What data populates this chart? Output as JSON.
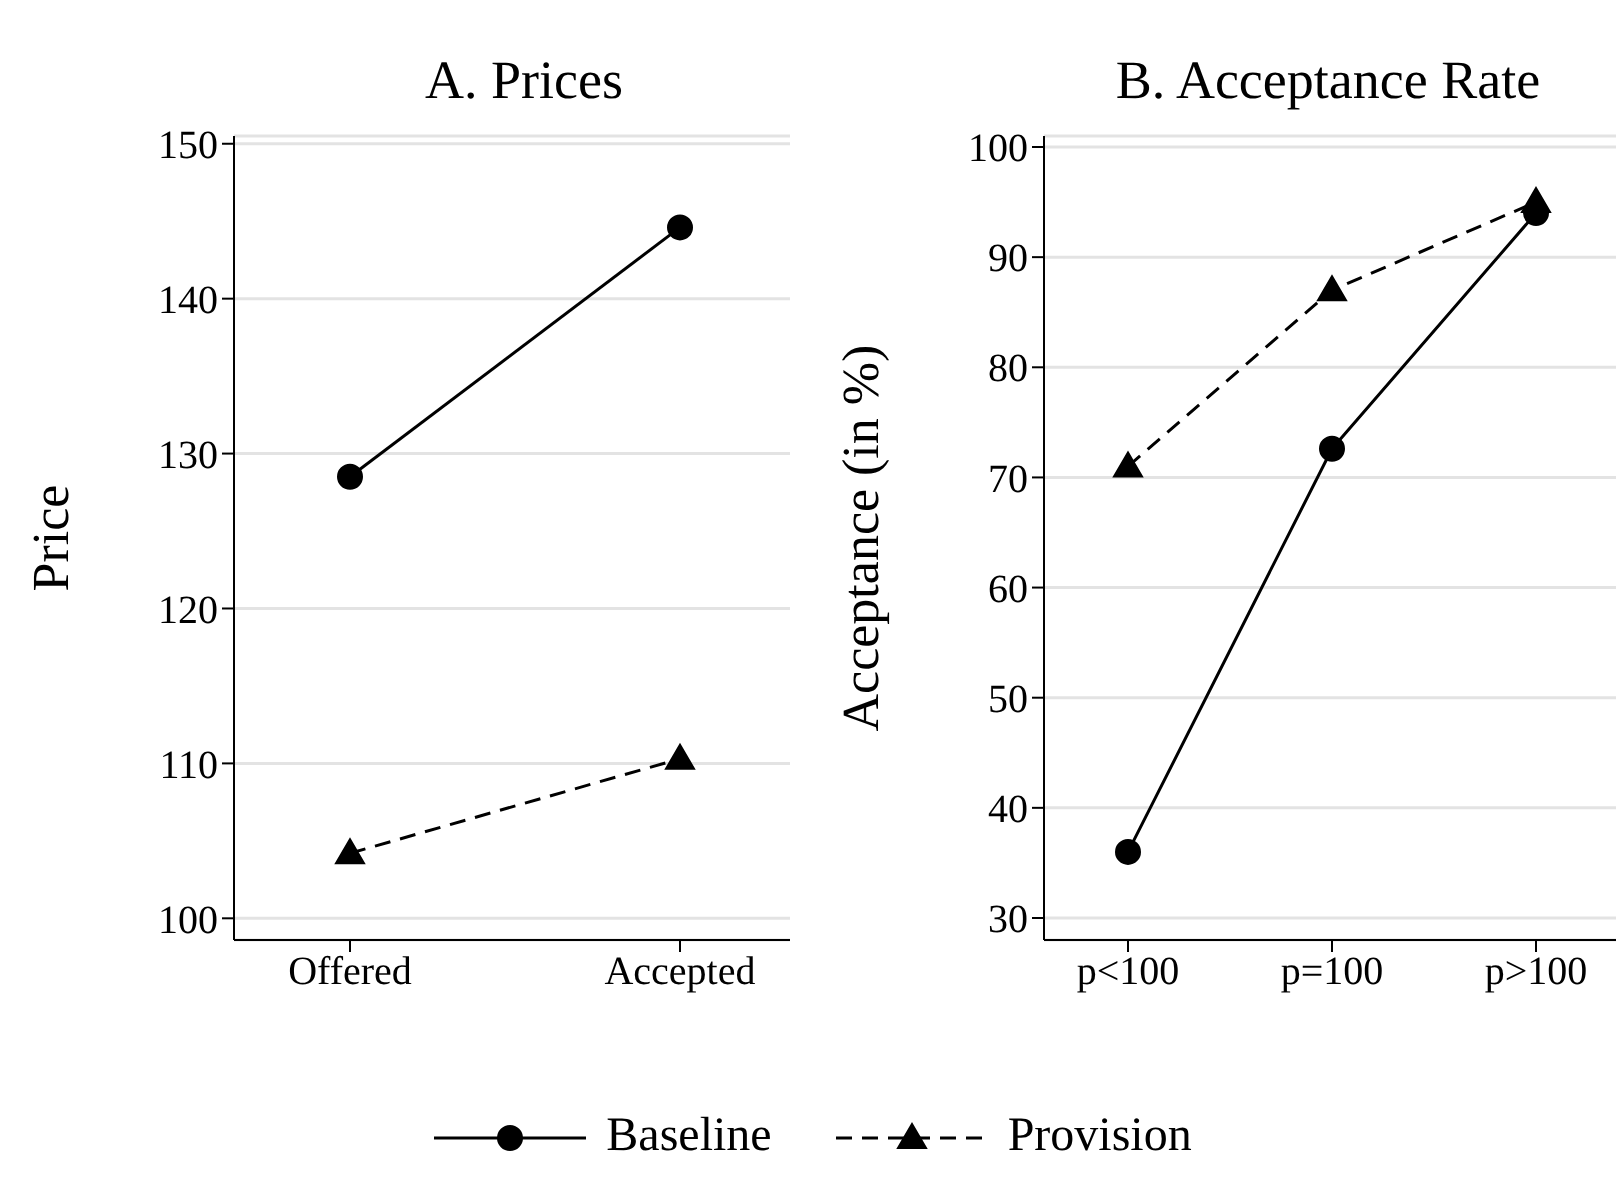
{
  "chart_data": [
    {
      "type": "line",
      "title": "A. Prices",
      "ylabel": "Price",
      "categories": [
        "Offered",
        "Accepted"
      ],
      "ylim": [
        98.6,
        150.5
      ],
      "yticks": [
        100,
        110,
        120,
        130,
        140,
        150
      ],
      "grid": "y",
      "legend": "bottom",
      "series": [
        {
          "name": "Baseline",
          "color": "#000000",
          "values": [
            128.5,
            144.6
          ],
          "marker": "circle",
          "line_style": "solid"
        },
        {
          "name": "Provision",
          "color": "#000000",
          "values": [
            104.2,
            110.3
          ],
          "marker": "triangle",
          "line_style": "dashed"
        }
      ]
    },
    {
      "type": "line",
      "title": "B. Acceptance Rate",
      "ylabel": "Acceptance (in %)",
      "categories": [
        "p<100",
        "p=100",
        "p>100"
      ],
      "ylim": [
        28,
        101
      ],
      "yticks": [
        30,
        40,
        50,
        60,
        70,
        80,
        90,
        100
      ],
      "grid": "y",
      "series": [
        {
          "color": "#000000",
          "values": [
            36,
            72.6,
            94
          ],
          "marker": "circle",
          "line_style": "solid"
        },
        {
          "color": "#000000",
          "values": [
            71,
            87,
            95
          ],
          "marker": "triangle",
          "line_style": "dashed"
        }
      ]
    }
  ]
}
